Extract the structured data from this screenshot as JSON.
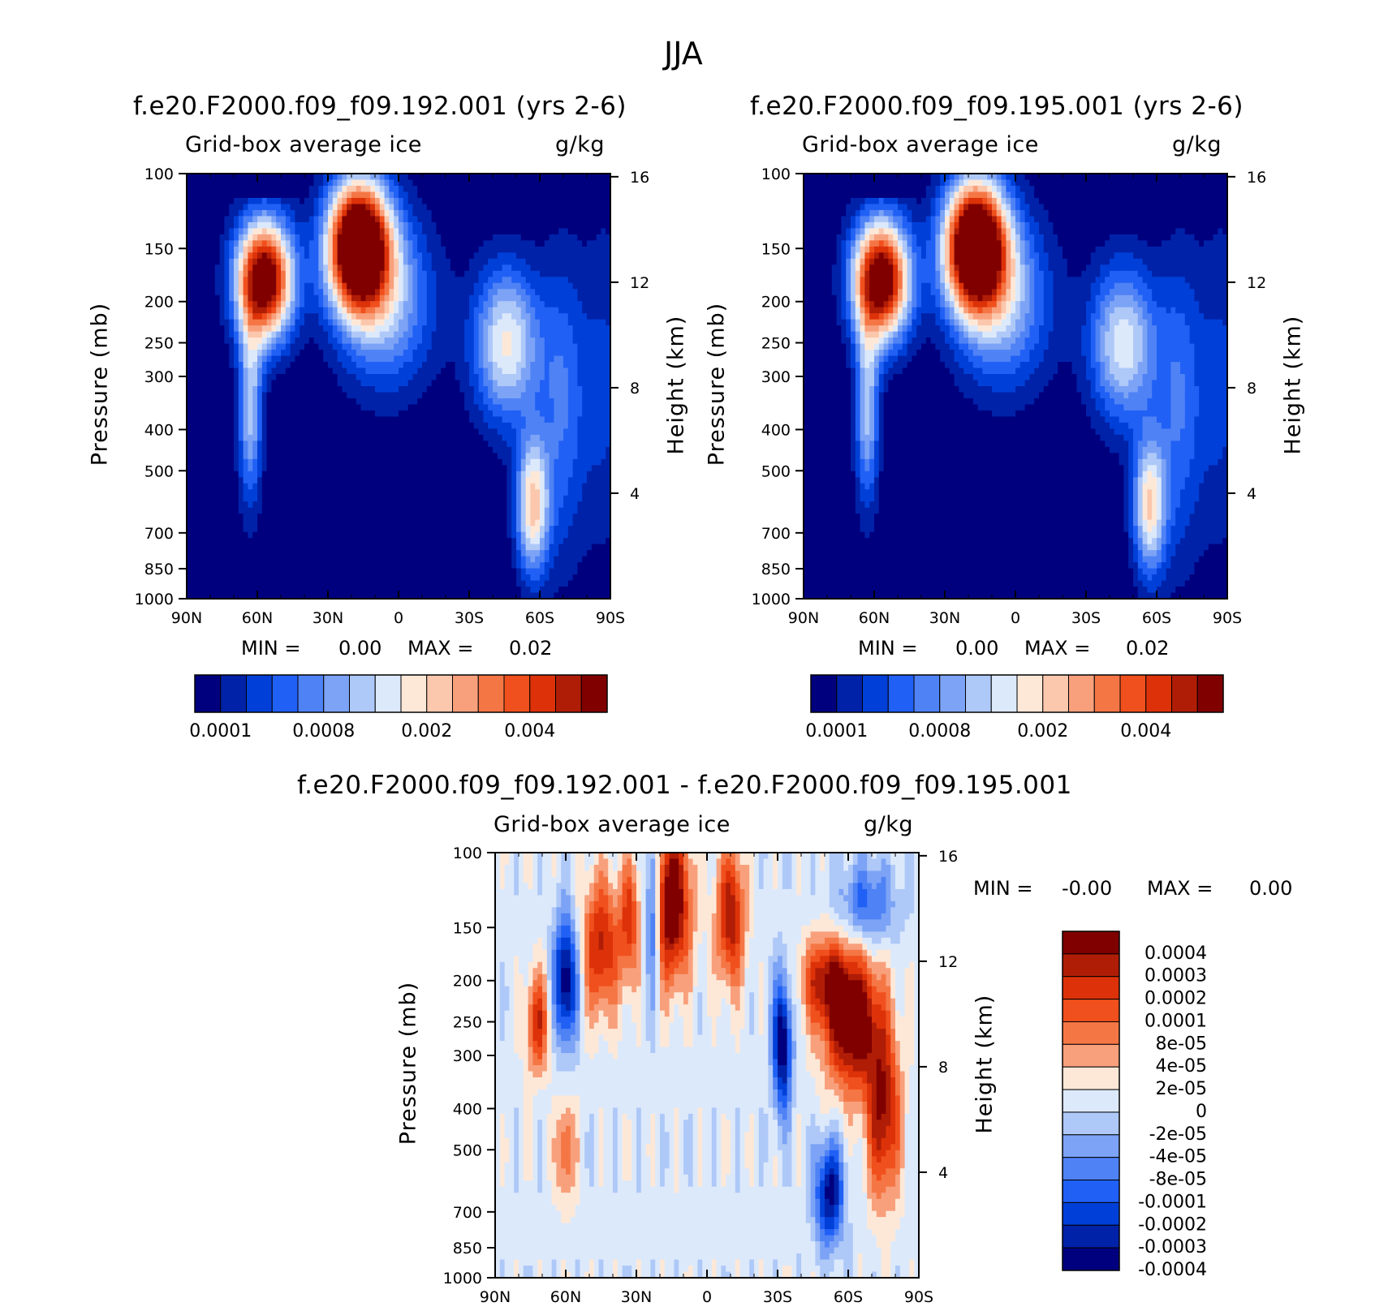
{
  "figure": {
    "title": "JJA",
    "panels": [
      {
        "title": "f.e20.F2000.f09_f09.192.001 (yrs 2-6)",
        "field": "Grid-box average ice",
        "units": "g/kg",
        "ylabel_left": "Pressure (mb)",
        "ylabel_right": "Height (km)",
        "min_label": "MIN =",
        "min_value": "0.00",
        "max_label": "MAX =",
        "max_value": "0.02"
      },
      {
        "title": "f.e20.F2000.f09_f09.195.001 (yrs 2-6)",
        "field": "Grid-box average ice",
        "units": "g/kg",
        "ylabel_left": "Pressure (mb)",
        "ylabel_right": "Height (km)",
        "min_label": "MIN =",
        "min_value": "0.00",
        "max_label": "MAX =",
        "max_value": "0.02"
      },
      {
        "title": "f.e20.F2000.f09_f09.192.001 - f.e20.F2000.f09_f09.195.001",
        "field": "Grid-box average ice",
        "units": "g/kg",
        "ylabel_left": "Pressure (mb)",
        "ylabel_right": "Height (km)",
        "min_label": "MIN =",
        "min_value": "-0.00",
        "max_label": "MAX =",
        "max_value": "0.00"
      }
    ],
    "colors": {
      "abs_scale": [
        "#00007f",
        "#0022a8",
        "#0040d8",
        "#2060f5",
        "#4f82f5",
        "#7ca3f5",
        "#aec8f8",
        "#dce9fb",
        "#fde8d8",
        "#fbc7ad",
        "#f8a07c",
        "#f57645",
        "#f0501d",
        "#dd3209",
        "#b01d06",
        "#800000"
      ],
      "diff_scale": [
        "#800000",
        "#b01d06",
        "#dd3209",
        "#f0501d",
        "#f57645",
        "#f8a07c",
        "#fde8d8",
        "#dce9fb",
        "#aec8f8",
        "#7ca3f5",
        "#4f82f5",
        "#2060f5",
        "#0040d8",
        "#0022a8",
        "#00007f"
      ]
    }
  },
  "chart_data": [
    {
      "type": "heatmap",
      "title": "f.e20.F2000.f09_f09.192.001 (yrs 2-6)",
      "xlabel": "",
      "ylabel": "Pressure (mb)",
      "ylabel_right": "Height (km)",
      "x_ticks": [
        "90N",
        "60N",
        "30N",
        "0",
        "30S",
        "60S",
        "90S"
      ],
      "y_ticks": [
        "100",
        "150",
        "200",
        "250",
        "300",
        "400",
        "500",
        "700",
        "850",
        "1000"
      ],
      "y_right_ticks": [
        "16",
        "12",
        "8",
        "4"
      ],
      "y_scale": "log",
      "colorbar_labels": [
        "0.0001",
        "0.0008",
        "0.002",
        "0.004"
      ],
      "min": 0.0,
      "max": 0.02
    },
    {
      "type": "heatmap",
      "title": "f.e20.F2000.f09_f09.195.001 (yrs 2-6)",
      "xlabel": "",
      "ylabel": "Pressure (mb)",
      "ylabel_right": "Height (km)",
      "x_ticks": [
        "90N",
        "60N",
        "30N",
        "0",
        "30S",
        "60S",
        "90S"
      ],
      "y_ticks": [
        "100",
        "150",
        "200",
        "250",
        "300",
        "400",
        "500",
        "700",
        "850",
        "1000"
      ],
      "y_right_ticks": [
        "16",
        "12",
        "8",
        "4"
      ],
      "y_scale": "log",
      "colorbar_labels": [
        "0.0001",
        "0.0008",
        "0.002",
        "0.004"
      ],
      "min": 0.0,
      "max": 0.02
    },
    {
      "type": "heatmap",
      "title": "f.e20.F2000.f09_f09.192.001 - f.e20.F2000.f09_f09.195.001",
      "xlabel": "",
      "ylabel": "Pressure (mb)",
      "ylabel_right": "Height (km)",
      "x_ticks": [
        "90N",
        "60N",
        "30N",
        "0",
        "30S",
        "60S",
        "90S"
      ],
      "y_ticks": [
        "100",
        "150",
        "200",
        "250",
        "300",
        "400",
        "500",
        "700",
        "850",
        "1000"
      ],
      "y_right_ticks": [
        "16",
        "12",
        "8",
        "4"
      ],
      "y_scale": "log",
      "colorbar_labels": [
        "0.0004",
        "0.0003",
        "0.0002",
        "0.0001",
        "8e-05",
        "4e-05",
        "2e-05",
        "0",
        "-2e-05",
        "-4e-05",
        "-8e-05",
        "-0.0001",
        "-0.0002",
        "-0.0003",
        "-0.0004"
      ],
      "min": -0.0,
      "max": 0.0
    }
  ]
}
